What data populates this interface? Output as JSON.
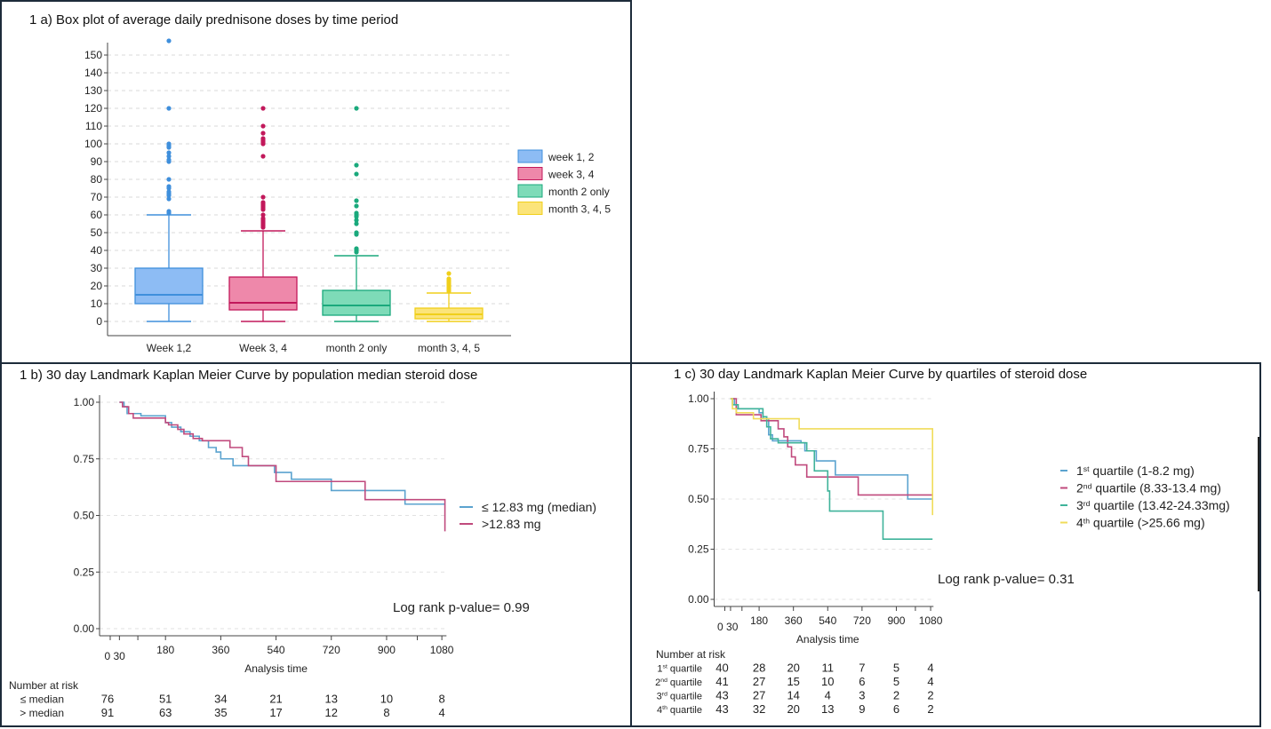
{
  "chart_data": [
    {
      "type": "box",
      "title": "1 a) Box plot of average daily prednisone doses by time period",
      "xlabel": "",
      "ylabel": "",
      "ylim": [
        0,
        150
      ],
      "yticks": [
        "0",
        "10",
        "20",
        "30",
        "40",
        "50",
        "60",
        "70",
        "80",
        "90",
        "100",
        "110",
        "120",
        "130",
        "140",
        "150"
      ],
      "categories": [
        "Week 1,2",
        "Week 3, 4",
        "month 2 only",
        "month 3, 4, 5"
      ],
      "legend": [
        "week 1, 2",
        "week 3, 4",
        "month 2 only",
        "month 3, 4, 5"
      ],
      "legend_position": "right",
      "grid": true,
      "series": [
        {
          "min": 0,
          "q1": 10,
          "median": 15,
          "q3": 30,
          "max": 60,
          "outliers": [
            61,
            62,
            69,
            71,
            72,
            73,
            75,
            76,
            80,
            90,
            91,
            93,
            95,
            98,
            99,
            100,
            120,
            158
          ],
          "edge": "#3f8fdc",
          "fill": "#8dbcf4"
        },
        {
          "min": 0,
          "q1": 6.5,
          "median": 10.5,
          "q3": 25,
          "max": 51,
          "outliers": [
            53,
            54,
            55,
            56,
            57,
            58,
            60,
            63,
            64,
            65,
            66,
            67,
            70,
            93,
            100,
            101,
            102,
            103,
            106,
            110,
            120
          ],
          "edge": "#c2185b",
          "fill": "#ee88aa"
        },
        {
          "min": 0,
          "q1": 3.5,
          "median": 9,
          "q3": 17.5,
          "max": 37,
          "outliers": [
            39,
            40,
            41,
            49,
            50,
            55,
            57,
            59,
            60,
            61,
            65,
            68,
            83,
            88,
            120
          ],
          "edge": "#1aa97c",
          "fill": "#7edbb8"
        },
        {
          "min": 0,
          "q1": 1.5,
          "median": 4,
          "q3": 7.5,
          "max": 16,
          "outliers": [
            17,
            18,
            19,
            20,
            21,
            22,
            23,
            24,
            27
          ],
          "edge": "#f0cf1a",
          "fill": "#fbe47a"
        }
      ]
    },
    {
      "type": "line",
      "title": "1 b) 30 day Landmark Kaplan Meier Curve by population median steroid dose",
      "xlabel": "Analysis time",
      "xticks": [
        "180",
        "360",
        "540",
        "720",
        "900",
        "1080"
      ],
      "xtick_start": "0 30",
      "yticks": [
        "0.00",
        "0.25",
        "0.50",
        "0.75",
        "1.00"
      ],
      "xlim": [
        0,
        1080
      ],
      "ylim": [
        0,
        1
      ],
      "annotation": "Log rank p-value= 0.99",
      "legend_position": "right",
      "series": [
        {
          "name": "≤ 12.83 mg (median)",
          "color": "#5ba3cf",
          "steps": [
            [
              30,
              1
            ],
            [
              45,
              0.98
            ],
            [
              55,
              0.95
            ],
            [
              100,
              0.94
            ],
            [
              180,
              0.91
            ],
            [
              200,
              0.89
            ],
            [
              230,
              0.87
            ],
            [
              260,
              0.85
            ],
            [
              290,
              0.83
            ],
            [
              320,
              0.8
            ],
            [
              345,
              0.78
            ],
            [
              360,
              0.75
            ],
            [
              400,
              0.72
            ],
            [
              535,
              0.69
            ],
            [
              590,
              0.66
            ],
            [
              720,
              0.61
            ],
            [
              960,
              0.55
            ],
            [
              1090,
              0.55
            ]
          ]
        },
        {
          "name": ">12.83 mg",
          "color": "#c04a7d",
          "steps": [
            [
              30,
              1
            ],
            [
              40,
              0.98
            ],
            [
              60,
              0.95
            ],
            [
              75,
              0.93
            ],
            [
              180,
              0.91
            ],
            [
              190,
              0.9
            ],
            [
              220,
              0.88
            ],
            [
              240,
              0.86
            ],
            [
              270,
              0.84
            ],
            [
              300,
              0.83
            ],
            [
              390,
              0.8
            ],
            [
              430,
              0.76
            ],
            [
              450,
              0.72
            ],
            [
              540,
              0.65
            ],
            [
              830,
              0.57
            ],
            [
              1090,
              0.57
            ],
            [
              1090,
              0.43
            ]
          ]
        }
      ],
      "risk_table": {
        "title": "Number at risk",
        "rows": [
          {
            "label": "≤ median",
            "values": [
              "76",
              "51",
              "34",
              "21",
              "13",
              "10",
              "8"
            ]
          },
          {
            "label": "> median",
            "values": [
              "91",
              "63",
              "35",
              "17",
              "12",
              "8",
              "4"
            ]
          }
        ]
      }
    },
    {
      "type": "line",
      "title": "1 c) 30 day Landmark Kaplan Meier Curve by quartiles of steroid dose",
      "xlabel": "Analysis time",
      "xticks": [
        "180",
        "360",
        "540",
        "720",
        "900",
        "1080"
      ],
      "xtick_start": "0 30",
      "yticks": [
        "0.00",
        "0.25",
        "0.50",
        "0.75",
        "1.00"
      ],
      "xlim": [
        0,
        1080
      ],
      "ylim": [
        0,
        1
      ],
      "annotation": "Log rank p-value= 0.31",
      "legend_position": "right",
      "series": [
        {
          "name": {
            "num": "1",
            "sup": "st",
            "rest": " quartile (1-8.2 mg)"
          },
          "color": "#5ba3cf",
          "steps": [
            [
              30,
              1
            ],
            [
              50,
              0.97
            ],
            [
              60,
              0.95
            ],
            [
              180,
              0.93
            ],
            [
              200,
              0.9
            ],
            [
              230,
              0.82
            ],
            [
              250,
              0.79
            ],
            [
              400,
              0.78
            ],
            [
              420,
              0.74
            ],
            [
              460,
              0.74
            ],
            [
              480,
              0.69
            ],
            [
              580,
              0.62
            ],
            [
              960,
              0.5
            ],
            [
              1090,
              0.5
            ]
          ]
        },
        {
          "name": {
            "num": "2",
            "sup": "nd",
            "rest": " quartile (8.33-13.4 mg)"
          },
          "color": "#c04a7d",
          "steps": [
            [
              30,
              1
            ],
            [
              60,
              0.92
            ],
            [
              180,
              0.92
            ],
            [
              190,
              0.89
            ],
            [
              280,
              0.85
            ],
            [
              310,
              0.81
            ],
            [
              330,
              0.76
            ],
            [
              350,
              0.71
            ],
            [
              370,
              0.67
            ],
            [
              430,
              0.61
            ],
            [
              700,
              0.52
            ],
            [
              1090,
              0.52
            ]
          ]
        },
        {
          "name": {
            "num": "3",
            "sup": "rd",
            "rest": " quartile (13.42-24.33mg)"
          },
          "color": "#3fb39a",
          "steps": [
            [
              30,
              1
            ],
            [
              40,
              0.97
            ],
            [
              70,
              0.95
            ],
            [
              200,
              0.91
            ],
            [
              220,
              0.86
            ],
            [
              240,
              0.8
            ],
            [
              280,
              0.78
            ],
            [
              430,
              0.74
            ],
            [
              470,
              0.64
            ],
            [
              540,
              0.54
            ],
            [
              550,
              0.44
            ],
            [
              830,
              0.3
            ],
            [
              1090,
              0.3
            ]
          ]
        },
        {
          "name": {
            "num": "4",
            "sup": "th",
            "rest": " quartile (>25.66 mg)"
          },
          "color": "#f0dc5a",
          "steps": [
            [
              30,
              1
            ],
            [
              40,
              0.95
            ],
            [
              60,
              0.93
            ],
            [
              150,
              0.9
            ],
            [
              390,
              0.85
            ],
            [
              1090,
              0.85
            ],
            [
              1090,
              0.42
            ]
          ]
        }
      ],
      "risk_table": {
        "title": "Number at risk",
        "rows": [
          {
            "label": {
              "num": "1",
              "sup": "st",
              "rest": " quartile"
            },
            "values": [
              "40",
              "28",
              "20",
              "11",
              "7",
              "5",
              "4"
            ]
          },
          {
            "label": {
              "num": "2",
              "sup": "nd",
              "rest": " quartile"
            },
            "values": [
              "41",
              "27",
              "15",
              "10",
              "6",
              "5",
              "4"
            ]
          },
          {
            "label": {
              "num": "3",
              "sup": "rd",
              "rest": " quartile"
            },
            "values": [
              "43",
              "27",
              "14",
              "4",
              "3",
              "2",
              "2"
            ]
          },
          {
            "label": {
              "num": "4",
              "sup": "th",
              "rest": " quartile"
            },
            "values": [
              "43",
              "32",
              "20",
              "13",
              "9",
              "6",
              "2"
            ]
          }
        ]
      }
    }
  ]
}
